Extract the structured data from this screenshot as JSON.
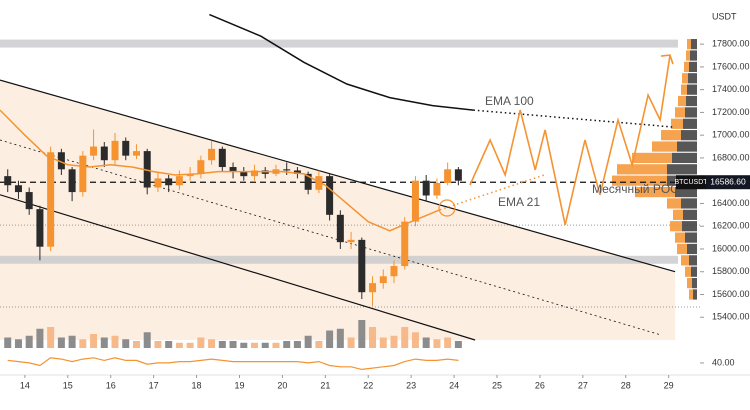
{
  "chart_data": {
    "type": "candlestick",
    "y_unit": "USDT",
    "xlim": [
      13.42,
      29.73
    ],
    "xticks": [
      14,
      15,
      16,
      17,
      18,
      19,
      20,
      21,
      22,
      23,
      24,
      25,
      26,
      27,
      28,
      29
    ],
    "ylim": [
      15200,
      18100
    ],
    "yticks": [
      {
        "value": 15400,
        "label": "15400.00"
      },
      {
        "value": 15600,
        "label": "15600.00"
      },
      {
        "value": 15800,
        "label": "15800.00"
      },
      {
        "value": 16000,
        "label": "16000.00"
      },
      {
        "value": 16200,
        "label": "16200.00"
      },
      {
        "value": 16400,
        "label": "16400.00"
      },
      {
        "value": 16600,
        "label": "16600.00"
      },
      {
        "value": 16800,
        "label": "16800.00"
      },
      {
        "value": 17000,
        "label": "17000.00"
      },
      {
        "value": 17200,
        "label": "17200.00"
      },
      {
        "value": 17400,
        "label": "17400.00"
      },
      {
        "value": 17600,
        "label": "17600.00"
      },
      {
        "value": 17800,
        "label": "17800.00"
      }
    ],
    "candles": {
      "up_color": "#f59331",
      "down_color": "#2b2b2b",
      "x": [
        13.6,
        13.85,
        14.1,
        14.35,
        14.6,
        14.85,
        15.1,
        15.35,
        15.6,
        15.85,
        16.1,
        16.35,
        16.6,
        16.85,
        17.1,
        17.35,
        17.6,
        17.85,
        18.1,
        18.35,
        18.6,
        18.85,
        19.1,
        19.35,
        19.6,
        19.85,
        20.1,
        20.35,
        20.6,
        20.85,
        21.1,
        21.35,
        21.6,
        21.85,
        22.1,
        22.35,
        22.6,
        22.85,
        23.1,
        23.35,
        23.6,
        23.85,
        24.1
      ],
      "open": [
        16640,
        16560,
        16500,
        16350,
        16020,
        16850,
        16700,
        16500,
        16820,
        16900,
        16780,
        16950,
        16820,
        16860,
        16540,
        16620,
        16560,
        16640,
        16660,
        16780,
        16880,
        16720,
        16680,
        16640,
        16690,
        16660,
        16700,
        16690,
        16660,
        16520,
        16640,
        16300,
        16060,
        16080,
        15620,
        15700,
        15760,
        15850,
        16240,
        16600,
        16470,
        16580,
        16700
      ],
      "high": [
        16700,
        16600,
        16540,
        16380,
        16900,
        16880,
        16720,
        16860,
        17050,
        16940,
        17020,
        16980,
        16920,
        16880,
        16680,
        16650,
        16690,
        16720,
        16820,
        16950,
        16900,
        16760,
        16720,
        16740,
        16720,
        16740,
        16760,
        16720,
        16680,
        16690,
        16660,
        16340,
        16150,
        16100,
        15760,
        15820,
        15900,
        16280,
        16640,
        16650,
        16620,
        16760,
        16720
      ],
      "low": [
        16500,
        16440,
        16300,
        15900,
        15980,
        16650,
        16420,
        16460,
        16780,
        16720,
        16740,
        16780,
        16790,
        16480,
        16500,
        16500,
        16520,
        16600,
        16620,
        16740,
        16680,
        16620,
        16600,
        16600,
        16620,
        16640,
        16650,
        16620,
        16480,
        16490,
        16250,
        16000,
        16000,
        15560,
        15500,
        15650,
        15700,
        15820,
        16200,
        16420,
        16440,
        16560,
        16560
      ],
      "close": [
        16560,
        16500,
        16350,
        16020,
        16850,
        16700,
        16500,
        16820,
        16900,
        16780,
        16950,
        16820,
        16860,
        16540,
        16620,
        16560,
        16640,
        16660,
        16780,
        16880,
        16720,
        16680,
        16640,
        16690,
        16660,
        16700,
        16690,
        16660,
        16520,
        16640,
        16300,
        16060,
        16080,
        15620,
        15700,
        15760,
        15850,
        16240,
        16600,
        16470,
        16580,
        16700,
        16600
      ]
    },
    "volume": {
      "up_color": "#f7b98a",
      "down_color": "#8c8c8c",
      "values": [
        30,
        25,
        35,
        55,
        60,
        30,
        35,
        25,
        40,
        30,
        35,
        25,
        20,
        45,
        20,
        20,
        15,
        15,
        30,
        25,
        20,
        20,
        15,
        15,
        15,
        15,
        20,
        20,
        35,
        20,
        50,
        55,
        30,
        80,
        60,
        30,
        35,
        60,
        45,
        30,
        25,
        30,
        20
      ]
    },
    "oscillator": {
      "color": "#f59331",
      "ylim": [
        33,
        50
      ],
      "yticks": [
        {
          "value": 40,
          "label": "40.00"
        }
      ],
      "values": [
        42,
        41,
        40,
        38,
        44,
        43,
        41,
        43,
        44,
        42,
        44,
        42,
        42,
        39,
        40,
        40,
        41,
        41,
        42,
        43,
        42,
        41,
        41,
        41,
        41,
        41,
        41,
        41,
        40,
        41,
        38,
        37,
        37,
        35,
        36,
        37,
        38,
        41,
        43,
        42,
        42,
        43,
        42
      ]
    },
    "lines": [
      {
        "name": "EMA 100",
        "color": "#111111",
        "x": [
          18.3,
          19.5,
          20.5,
          21.5,
          22.5,
          23.5,
          24.45
        ],
        "values": [
          18060,
          17870,
          17640,
          17450,
          17330,
          17260,
          17220
        ],
        "forecast_x": [
          24.45,
          29.15
        ],
        "forecast_values": [
          17220,
          17070
        ]
      },
      {
        "name": "EMA 21",
        "color": "#f59331",
        "x": [
          13.42,
          14.0,
          14.5,
          15.0,
          15.5,
          16.0,
          16.5,
          17.0,
          17.5,
          18.0,
          18.5,
          19.0,
          19.5,
          20.0,
          20.5,
          21.0,
          21.5,
          22.0,
          22.5,
          23.0,
          23.67
        ],
        "values": [
          17220,
          17000,
          16820,
          16740,
          16720,
          16740,
          16720,
          16680,
          16650,
          16660,
          16680,
          16680,
          16680,
          16680,
          16660,
          16560,
          16400,
          16240,
          16160,
          16240,
          16344
        ],
        "forecast_x": [
          23.67,
          26.1
        ],
        "forecast_values": [
          16344,
          16650
        ]
      }
    ],
    "channel": {
      "color": "#111111",
      "fill": "#fdeee2",
      "upper": {
        "x": [
          13.42,
          29.15
        ],
        "values": [
          17484,
          15800
        ]
      },
      "lower": {
        "x": [
          13.42,
          24.49
        ],
        "values": [
          16476,
          15200
        ]
      },
      "middle": {
        "x": [
          13.42,
          28.8
        ],
        "values": [
          16958,
          15247
        ]
      }
    },
    "forecast": {
      "color": "#f59331",
      "x": [
        24.37,
        24.84,
        25.19,
        25.54,
        25.89,
        26.12,
        26.59,
        27.05,
        27.4,
        27.82,
        28.15,
        28.52,
        28.8,
        29.03
      ],
      "values": [
        16563,
        16958,
        16651,
        17221,
        16695,
        17046,
        16212,
        16958,
        16475,
        17133,
        16739,
        17353,
        17133,
        17704
      ]
    },
    "zones": [
      {
        "from": 17770,
        "to": 17840
      },
      {
        "from": 15870,
        "to": 15940
      }
    ],
    "levels": [
      16210,
      15490
    ],
    "price_line": {
      "name": "BTCUSDT",
      "value": 16586.6,
      "value_label": "16586.60"
    },
    "profile": {
      "name": "Месячный POC",
      "dark_color": "#3a3a3a",
      "light_color": "#f59331",
      "bins": [
        15600,
        15700,
        15800,
        15900,
        16000,
        16100,
        16200,
        16300,
        16400,
        16500,
        16600,
        16700,
        16800,
        16900,
        17000,
        17100,
        17200,
        17300,
        17400,
        17500,
        17600,
        17700,
        17800
      ],
      "dark": [
        4,
        5,
        6,
        8,
        10,
        12,
        15,
        14,
        16,
        22,
        30,
        30,
        25,
        20,
        16,
        14,
        12,
        11,
        10,
        9,
        8,
        7,
        6
      ],
      "light": [
        4,
        5,
        6,
        8,
        10,
        10,
        12,
        10,
        14,
        40,
        55,
        50,
        40,
        25,
        20,
        12,
        10,
        8,
        6,
        6,
        5,
        4,
        4
      ]
    }
  }
}
